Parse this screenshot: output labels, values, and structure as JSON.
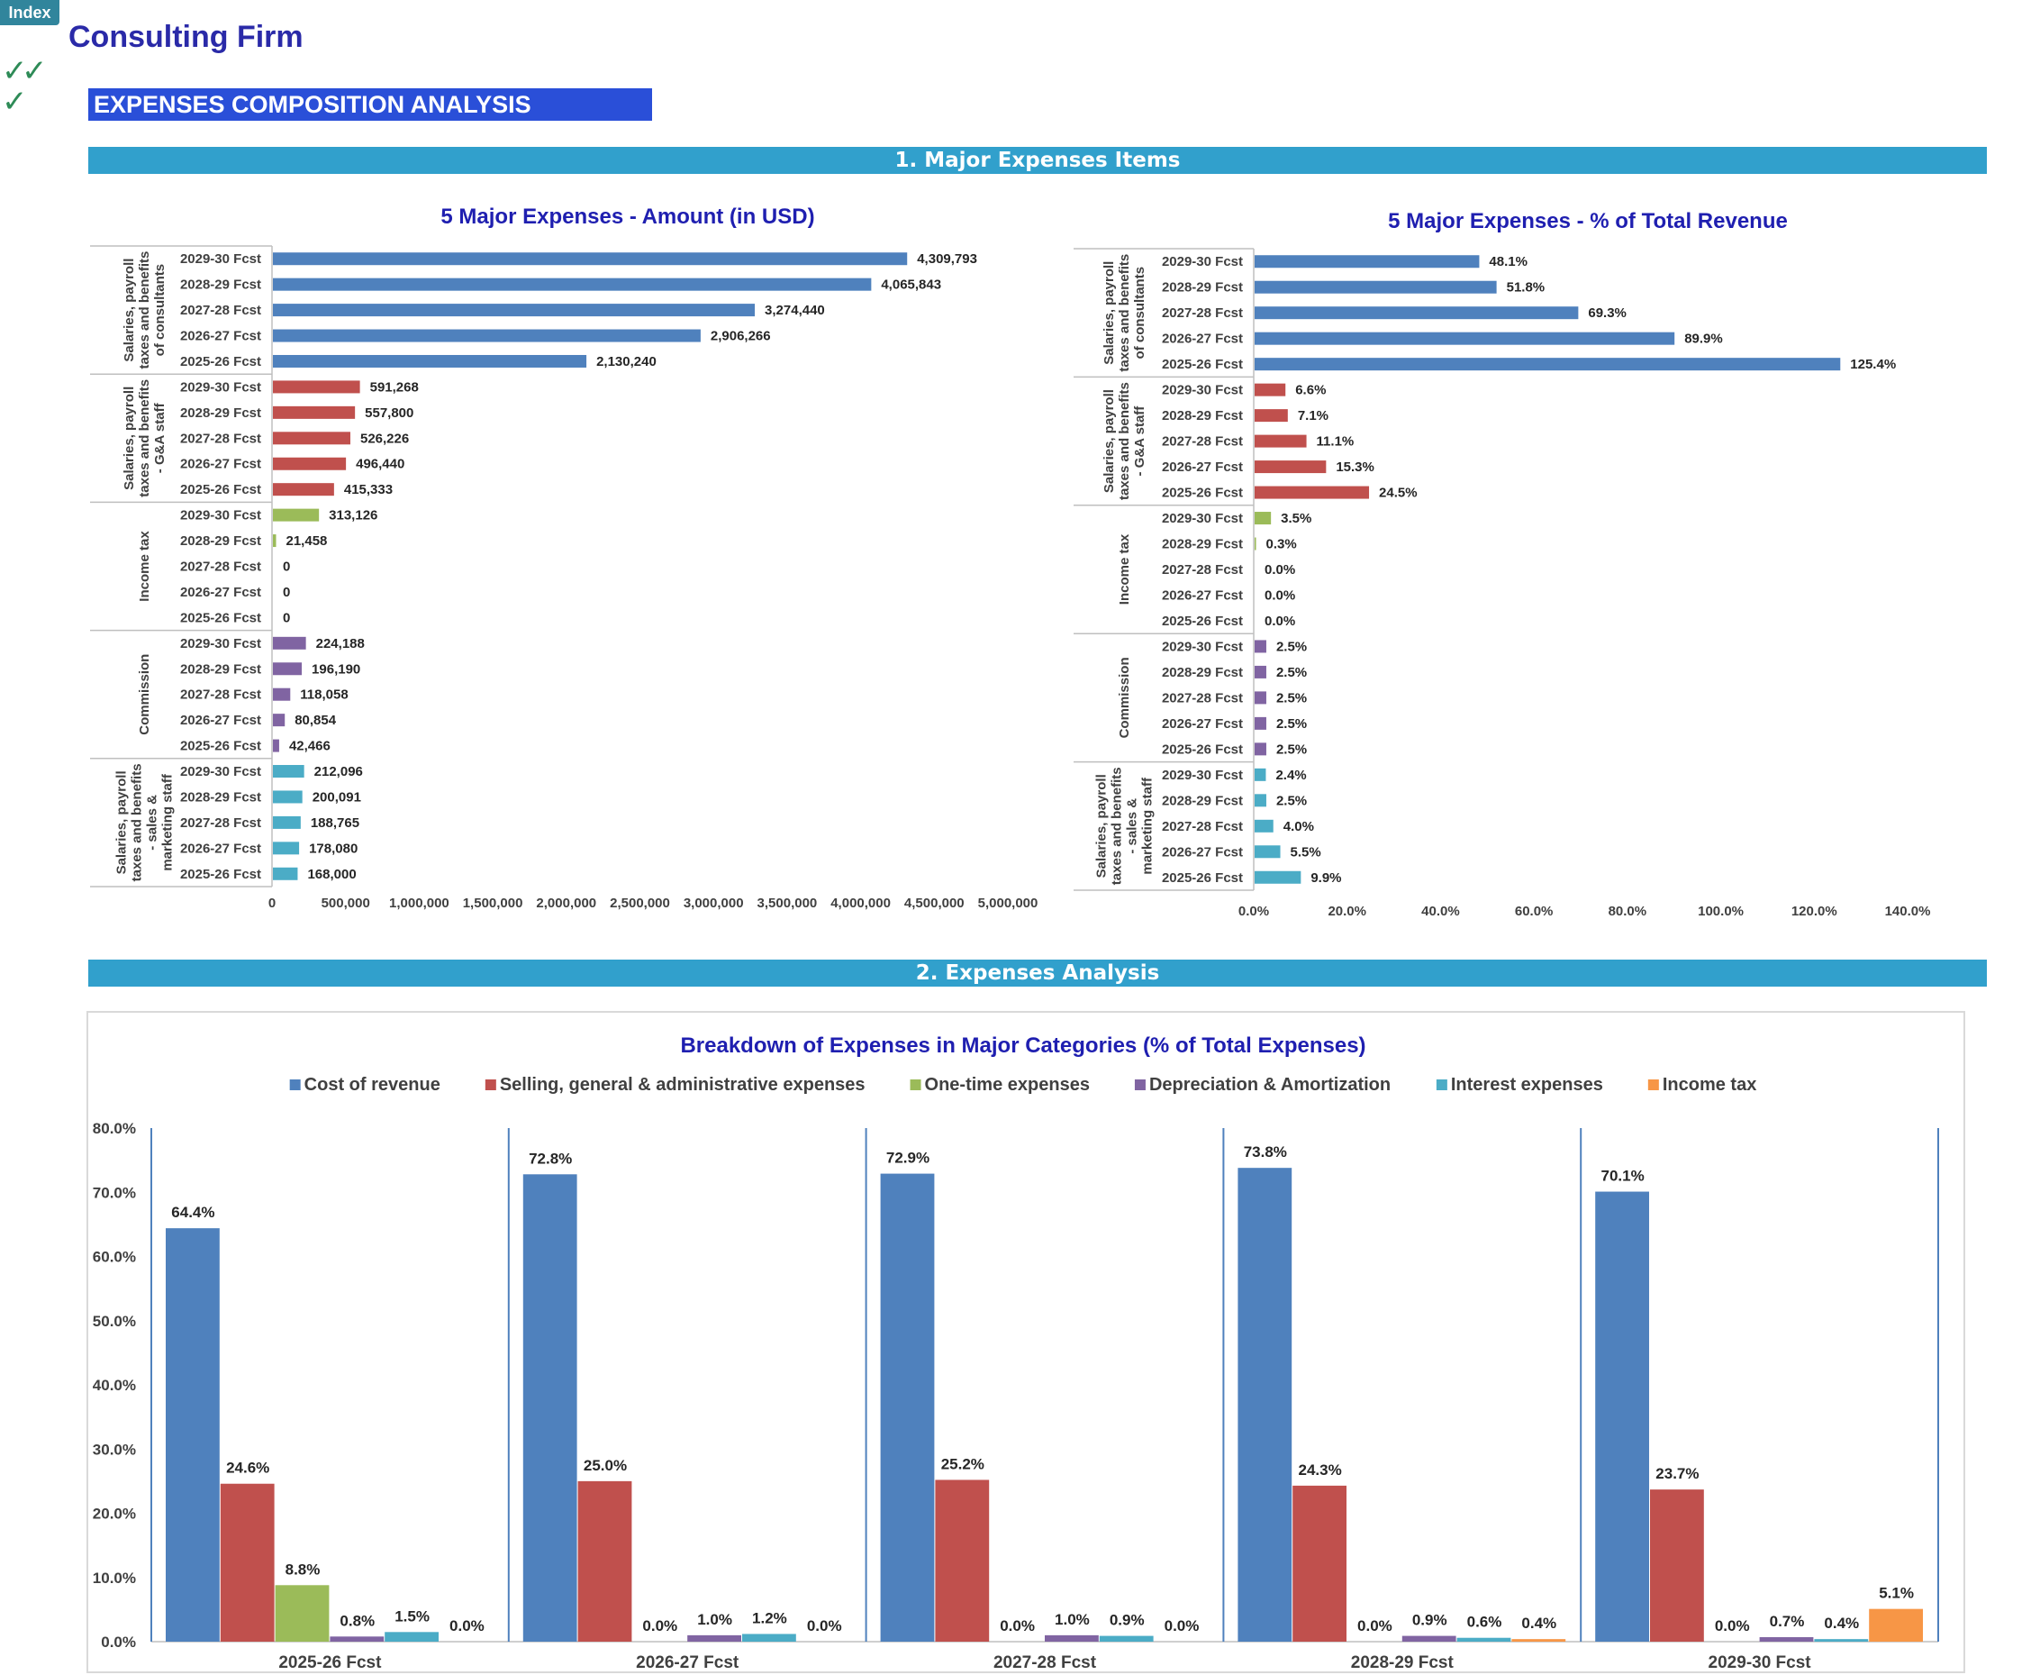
{
  "header": {
    "index_label": "Index",
    "firm_name": "Consulting Firm",
    "section_title": "EXPENSES COMPOSITION ANALYSIS",
    "check_icons": [
      "check-icon",
      "check-icon",
      "check-icon"
    ]
  },
  "sections": [
    {
      "title": "1. Major Expenses Items"
    },
    {
      "title": "2. Expenses Analysis"
    }
  ],
  "chart_data": [
    {
      "type": "bar",
      "orientation": "horizontal",
      "title": "5 Major Expenses - Amount (in USD)",
      "xlim": [
        0,
        5000000
      ],
      "xticks": [
        "0",
        "500,000",
        "1,000,000",
        "1,500,000",
        "2,000,000",
        "2,500,000",
        "3,000,000",
        "3,500,000",
        "4,000,000",
        "4,500,000",
        "5,000,000"
      ],
      "categories": [
        "2029-30 Fcst",
        "2028-29 Fcst",
        "2027-28 Fcst",
        "2026-27 Fcst",
        "2025-26 Fcst"
      ],
      "groups": [
        {
          "name": "Salaries, payroll taxes and benefits of consultants",
          "lines": [
            "Salaries, payroll",
            "taxes and benefits",
            "of consultants"
          ],
          "color": "#4f81bd",
          "values": [
            4309793,
            4065843,
            3274440,
            2906266,
            2130240
          ],
          "labels": [
            "4,309,793",
            "4,065,843",
            "3,274,440",
            "2,906,266",
            "2,130,240"
          ]
        },
        {
          "name": "Salaries, payroll taxes and benefits - G&A staff",
          "lines": [
            "Salaries, payroll",
            "taxes and benefits",
            "- G&A staff"
          ],
          "color": "#c0504d",
          "values": [
            591268,
            557800,
            526226,
            496440,
            415333
          ],
          "labels": [
            "591,268",
            "557,800",
            "526,226",
            "496,440",
            "415,333"
          ]
        },
        {
          "name": "Income tax",
          "lines": [
            "Income tax"
          ],
          "color": "#9bbb59",
          "values": [
            313126,
            21458,
            0,
            0,
            0
          ],
          "labels": [
            "313,126",
            "21,458",
            "0",
            "0",
            "0"
          ]
        },
        {
          "name": "Commission",
          "lines": [
            "Commission"
          ],
          "color": "#8064a2",
          "values": [
            224188,
            196190,
            118058,
            80854,
            42466
          ],
          "labels": [
            "224,188",
            "196,190",
            "118,058",
            "80,854",
            "42,466"
          ]
        },
        {
          "name": "Salaries, payroll taxes and benefits - sales & marketing staff",
          "lines": [
            "Salaries, payroll",
            "taxes and benefits",
            "- sales &",
            "marketing staff"
          ],
          "color": "#4bacc6",
          "values": [
            212096,
            200091,
            188765,
            178080,
            168000
          ],
          "labels": [
            "212,096",
            "200,091",
            "188,765",
            "178,080",
            "168,000"
          ]
        }
      ]
    },
    {
      "type": "bar",
      "orientation": "horizontal",
      "title": "5 Major Expenses - % of Total Revenue",
      "xlim": [
        0,
        140
      ],
      "xticks": [
        "0.0%",
        "20.0%",
        "40.0%",
        "60.0%",
        "80.0%",
        "100.0%",
        "120.0%",
        "140.0%"
      ],
      "categories": [
        "2029-30 Fcst",
        "2028-29 Fcst",
        "2027-28 Fcst",
        "2026-27 Fcst",
        "2025-26 Fcst"
      ],
      "groups": [
        {
          "name": "Salaries, payroll taxes and benefits of consultants",
          "lines": [
            "Salaries, payroll",
            "taxes and benefits",
            "of consultants"
          ],
          "color": "#4f81bd",
          "values": [
            48.1,
            51.8,
            69.3,
            89.9,
            125.4
          ],
          "labels": [
            "48.1%",
            "51.8%",
            "69.3%",
            "89.9%",
            "125.4%"
          ]
        },
        {
          "name": "Salaries, payroll taxes and benefits - G&A staff",
          "lines": [
            "Salaries, payroll",
            "taxes and benefits",
            "- G&A staff"
          ],
          "color": "#c0504d",
          "values": [
            6.6,
            7.1,
            11.1,
            15.3,
            24.5
          ],
          "labels": [
            "6.6%",
            "7.1%",
            "11.1%",
            "15.3%",
            "24.5%"
          ]
        },
        {
          "name": "Income tax",
          "lines": [
            "Income tax"
          ],
          "color": "#9bbb59",
          "values": [
            3.5,
            0.3,
            0.0,
            0.0,
            0.0
          ],
          "labels": [
            "3.5%",
            "0.3%",
            "0.0%",
            "0.0%",
            "0.0%"
          ]
        },
        {
          "name": "Commission",
          "lines": [
            "Commission"
          ],
          "color": "#8064a2",
          "values": [
            2.5,
            2.5,
            2.5,
            2.5,
            2.5
          ],
          "labels": [
            "2.5%",
            "2.5%",
            "2.5%",
            "2.5%",
            "2.5%"
          ]
        },
        {
          "name": "Salaries, payroll taxes and benefits - sales & marketing staff",
          "lines": [
            "Salaries, payroll",
            "taxes and benefits",
            "- sales &",
            "marketing staff"
          ],
          "color": "#4bacc6",
          "values": [
            2.4,
            2.5,
            4.0,
            5.5,
            9.9
          ],
          "labels": [
            "2.4%",
            "2.5%",
            "4.0%",
            "5.5%",
            "9.9%"
          ]
        }
      ]
    },
    {
      "type": "bar",
      "orientation": "vertical",
      "title": "Breakdown of Expenses in Major Categories (% of Total Expenses)",
      "ylim": [
        0,
        80
      ],
      "yticks": [
        "0.0%",
        "10.0%",
        "20.0%",
        "30.0%",
        "40.0%",
        "50.0%",
        "60.0%",
        "70.0%",
        "80.0%"
      ],
      "legend_position": "top",
      "categories": [
        "2025-26 Fcst",
        "2026-27 Fcst",
        "2027-28 Fcst",
        "2028-29 Fcst",
        "2029-30 Fcst"
      ],
      "series": [
        {
          "name": "Cost of revenue",
          "color": "#4f81bd",
          "values": [
            64.4,
            72.8,
            72.9,
            73.8,
            70.1
          ],
          "labels": [
            "64.4%",
            "72.8%",
            "72.9%",
            "73.8%",
            "70.1%"
          ]
        },
        {
          "name": "Selling, general & administrative expenses",
          "color": "#c0504d",
          "values": [
            24.6,
            25.0,
            25.2,
            24.3,
            23.7
          ],
          "labels": [
            "24.6%",
            "25.0%",
            "25.2%",
            "24.3%",
            "23.7%"
          ]
        },
        {
          "name": "One-time expenses",
          "color": "#9bbb59",
          "values": [
            8.8,
            0.0,
            0.0,
            0.0,
            0.0
          ],
          "labels": [
            "8.8%",
            "0.0%",
            "0.0%",
            "0.0%",
            "0.0%"
          ]
        },
        {
          "name": "Depreciation & Amortization",
          "color": "#8064a2",
          "values": [
            0.8,
            1.0,
            1.0,
            0.9,
            0.7
          ],
          "labels": [
            "0.8%",
            "1.0%",
            "1.0%",
            "0.9%",
            "0.7%"
          ]
        },
        {
          "name": "Interest expenses",
          "color": "#4bacc6",
          "values": [
            1.5,
            1.2,
            0.9,
            0.6,
            0.4
          ],
          "labels": [
            "1.5%",
            "1.2%",
            "0.9%",
            "0.6%",
            "0.4%"
          ]
        },
        {
          "name": "Income tax",
          "color": "#f79646",
          "values": [
            0.0,
            0.0,
            0.0,
            0.4,
            5.1
          ],
          "labels": [
            "0.0%",
            "0.0%",
            "0.0%",
            "0.4%",
            "5.1%"
          ]
        }
      ]
    }
  ]
}
